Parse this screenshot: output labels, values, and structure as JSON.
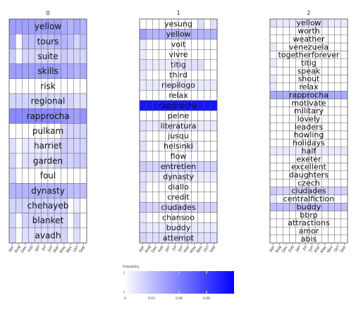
{
  "chart_data": {
    "type": "heatmap",
    "months": [
      "Apr",
      "Aug",
      "Dec",
      "Feb",
      "Jan",
      "Jul",
      "Jun",
      "Mar",
      "May",
      "Nov",
      "Oct",
      "Sep"
    ],
    "colorbar": {
      "label": "Probability",
      "ticks": [
        "0",
        "0.03",
        "0.06",
        "0.09"
      ],
      "range": [
        0,
        0.12
      ],
      "low_color": "#ffffff",
      "high_color": "#0000ff"
    },
    "panels": [
      {
        "title": "0",
        "words": [
          "yellow",
          "tours",
          "suite",
          "skills",
          "risk",
          "regional",
          "rapprocha",
          "pulkam",
          "harriet",
          "garden",
          "foul",
          "dynasty",
          "chehayeb",
          "blanket",
          "avadh"
        ],
        "values": [
          [
            0.045,
            0.045,
            0.045,
            0.045,
            0.045,
            0.045,
            0.045,
            0.045,
            0.04,
            0.035,
            0.04,
            0.035
          ],
          [
            0.04,
            0.0,
            0.03,
            0.03,
            0.03,
            0.03,
            0.03,
            0.035,
            0.035,
            0.03,
            0.02,
            0.03
          ],
          [
            0.025,
            0.0,
            0.02,
            0.02,
            0.02,
            0.02,
            0.02,
            0.02,
            0.025,
            0.02,
            0.02,
            0.02
          ],
          [
            0.045,
            0.045,
            0.045,
            0.045,
            0.045,
            0.045,
            0.045,
            0.045,
            0.04,
            0.04,
            0.035,
            0.04
          ],
          [
            0.0,
            0.0,
            0.0,
            0.0,
            0.0,
            0.0,
            0.0,
            0.0,
            0.0,
            0.0,
            0.0,
            0.0
          ],
          [
            0.02,
            0.02,
            0.02,
            0.02,
            0.02,
            0.02,
            0.02,
            0.02,
            0.02,
            0.02,
            0.015,
            0.015
          ],
          [
            0.055,
            0.055,
            0.055,
            0.055,
            0.055,
            0.055,
            0.055,
            0.055,
            0.05,
            0.045,
            0.045,
            0.05
          ],
          [
            0.0,
            0.0,
            0.0,
            0.0,
            0.0,
            0.0,
            0.0,
            0.0,
            0.02,
            0.02,
            0.02,
            0.02
          ],
          [
            0.015,
            0.0,
            0.01,
            0.01,
            0.01,
            0.01,
            0.01,
            0.015,
            0.025,
            0.02,
            0.02,
            0.02
          ],
          [
            0.02,
            0.0,
            0.015,
            0.015,
            0.015,
            0.015,
            0.015,
            0.02,
            0.025,
            0.02,
            0.025,
            0.025
          ],
          [
            0.02,
            0.0,
            0.0,
            0.0,
            0.0,
            0.0,
            0.0,
            0.0,
            0.0,
            0.0,
            0.0,
            0.0
          ],
          [
            0.035,
            0.035,
            0.035,
            0.035,
            0.035,
            0.035,
            0.035,
            0.035,
            0.035,
            0.03,
            0.03,
            0.03
          ],
          [
            0.02,
            0.02,
            0.02,
            0.02,
            0.02,
            0.02,
            0.02,
            0.02,
            0.02,
            0.0,
            0.01,
            0.0
          ],
          [
            0.02,
            0.0,
            0.02,
            0.02,
            0.02,
            0.02,
            0.02,
            0.02,
            0.02,
            0.0,
            0.02,
            0.0
          ],
          [
            0.02,
            0.0,
            0.015,
            0.015,
            0.015,
            0.015,
            0.015,
            0.015,
            0.02,
            0.0,
            0.015,
            0.0
          ]
        ]
      },
      {
        "title": "1",
        "words": [
          "yesung",
          "yellow",
          "voit",
          "vivre",
          "titig",
          "third",
          "riepilogo",
          "relax",
          "rapprocha",
          "peine",
          "literatura",
          "jusqu",
          "helsinki",
          "flow",
          "entretien",
          "dynasty",
          "diallo",
          "credit",
          "ciudades",
          "chansoo",
          "buddy",
          "attempt"
        ],
        "values": [
          [
            0.0,
            0.0,
            0.0,
            0.0,
            0.0,
            0.0,
            0.0,
            0.0,
            0.0,
            0.015,
            0.0,
            0.015
          ],
          [
            0.045,
            0.035,
            0.035,
            0.035,
            0.035,
            0.035,
            0.035,
            0.035,
            0.035,
            0.035,
            0.035,
            0.035
          ],
          [
            0.01,
            0.0,
            0.0,
            0.0,
            0.0,
            0.0,
            0.0,
            0.0,
            0.0,
            0.0,
            0.0,
            0.0
          ],
          [
            0.01,
            0.0,
            0.0,
            0.0,
            0.0,
            0.0,
            0.0,
            0.0,
            0.0,
            0.0,
            0.0,
            0.0
          ],
          [
            0.015,
            0.01,
            0.01,
            0.01,
            0.01,
            0.01,
            0.01,
            0.015,
            0.015,
            0.015,
            0.0,
            0.0
          ],
          [
            0.01,
            0.0,
            0.0,
            0.0,
            0.0,
            0.0,
            0.0,
            0.0,
            0.0,
            0.0,
            0.0,
            0.0
          ],
          [
            0.01,
            0.01,
            0.01,
            0.01,
            0.01,
            0.01,
            0.01,
            0.01,
            0.01,
            0.01,
            0.01,
            0.01
          ],
          [
            0.0,
            0.0,
            0.0,
            0.0,
            0.0,
            0.0,
            0.0,
            0.0,
            0.0,
            0.0,
            0.0,
            0.0
          ],
          [
            0.11,
            0.11,
            0.11,
            0.11,
            0.11,
            0.11,
            0.11,
            0.11,
            0.11,
            0.11,
            0.11,
            0.11
          ],
          [
            0.0,
            0.0,
            0.0,
            0.0,
            0.0,
            0.0,
            0.0,
            0.0,
            0.0,
            0.0,
            0.0,
            0.0
          ],
          [
            0.015,
            0.01,
            0.01,
            0.01,
            0.01,
            0.01,
            0.01,
            0.01,
            0.01,
            0.01,
            0.01,
            0.01
          ],
          [
            0.01,
            0.0,
            0.0,
            0.0,
            0.0,
            0.0,
            0.0,
            0.0,
            0.0,
            0.0,
            0.0,
            0.0
          ],
          [
            0.015,
            0.0,
            0.0,
            0.0,
            0.0,
            0.0,
            0.0,
            0.01,
            0.01,
            0.0,
            0.0,
            0.0
          ],
          [
            0.01,
            0.0,
            0.0,
            0.0,
            0.0,
            0.0,
            0.0,
            0.0,
            0.0,
            0.0,
            0.0,
            0.0
          ],
          [
            0.025,
            0.02,
            0.02,
            0.02,
            0.02,
            0.02,
            0.02,
            0.02,
            0.02,
            0.02,
            0.02,
            0.02
          ],
          [
            0.015,
            0.01,
            0.01,
            0.01,
            0.01,
            0.01,
            0.01,
            0.01,
            0.01,
            0.01,
            0.01,
            0.01
          ],
          [
            0.015,
            0.0,
            0.0,
            0.0,
            0.0,
            0.0,
            0.0,
            0.0,
            0.0,
            0.0,
            0.0,
            0.0
          ],
          [
            0.01,
            0.0,
            0.0,
            0.0,
            0.0,
            0.0,
            0.0,
            0.0,
            0.0,
            0.0,
            0.0,
            0.0
          ],
          [
            0.025,
            0.02,
            0.02,
            0.02,
            0.02,
            0.02,
            0.02,
            0.02,
            0.02,
            0.02,
            0.02,
            0.02
          ],
          [
            0.01,
            0.0,
            0.0,
            0.0,
            0.0,
            0.0,
            0.0,
            0.0,
            0.0,
            0.0,
            0.0,
            0.0
          ],
          [
            0.015,
            0.01,
            0.01,
            0.01,
            0.01,
            0.01,
            0.01,
            0.01,
            0.01,
            0.01,
            0.01,
            0.01
          ],
          [
            0.02,
            0.015,
            0.015,
            0.015,
            0.015,
            0.015,
            0.015,
            0.015,
            0.015,
            0.015,
            0.015,
            0.015
          ]
        ]
      },
      {
        "title": "2",
        "words": [
          "yellow",
          "worth",
          "weather",
          "venezuela",
          "togetherforever",
          "titig",
          "speak",
          "shout",
          "relax",
          "rapprocha",
          "motivate",
          "military",
          "lovely",
          "leaders",
          "howling",
          "holidays",
          "half",
          "exeter",
          "excellent",
          "daughters",
          "czech",
          "ciudades",
          "centralfiction",
          "buddy",
          "bbrp",
          "attractions",
          "amor",
          "abis"
        ],
        "values": [
          [
            0.015,
            0.01,
            0.01,
            0.01,
            0.01,
            0.01,
            0.01,
            0.015,
            0.015,
            0.01,
            0.01,
            0.01
          ],
          [
            0.0,
            0.0,
            0.0,
            0.0,
            0.0,
            0.0,
            0.0,
            0.0,
            0.0,
            0.0,
            0.0,
            0.0
          ],
          [
            0.0,
            0.0,
            0.0,
            0.0,
            0.0,
            0.0,
            0.0,
            0.0,
            0.0,
            0.0,
            0.0,
            0.0
          ],
          [
            0.01,
            0.0,
            0.0,
            0.0,
            0.0,
            0.0,
            0.0,
            0.0,
            0.0,
            0.0,
            0.0,
            0.0
          ],
          [
            0.0,
            0.0,
            0.0,
            0.0,
            0.0,
            0.0,
            0.0,
            0.0,
            0.0,
            0.0,
            0.0,
            0.0
          ],
          [
            0.01,
            0.0,
            0.0,
            0.0,
            0.0,
            0.0,
            0.0,
            0.0,
            0.0,
            0.0,
            0.0,
            0.0
          ],
          [
            0.0,
            0.0,
            0.0,
            0.0,
            0.0,
            0.0,
            0.0,
            0.0,
            0.0,
            0.0,
            0.0,
            0.0
          ],
          [
            0.01,
            0.0,
            0.0,
            0.0,
            0.0,
            0.0,
            0.0,
            0.0,
            0.0,
            0.0,
            0.0,
            0.0
          ],
          [
            0.01,
            0.0,
            0.0,
            0.0,
            0.0,
            0.0,
            0.0,
            0.0,
            0.0,
            0.0,
            0.0,
            0.0
          ],
          [
            0.04,
            0.04,
            0.04,
            0.04,
            0.04,
            0.04,
            0.04,
            0.04,
            0.04,
            0.04,
            0.04,
            0.04
          ],
          [
            0.0,
            0.0,
            0.0,
            0.0,
            0.0,
            0.0,
            0.0,
            0.0,
            0.0,
            0.0,
            0.0,
            0.0
          ],
          [
            0.0,
            0.0,
            0.0,
            0.0,
            0.0,
            0.0,
            0.0,
            0.0,
            0.0,
            0.0,
            0.0,
            0.0
          ],
          [
            0.0,
            0.0,
            0.0,
            0.0,
            0.0,
            0.0,
            0.0,
            0.0,
            0.0,
            0.0,
            0.0,
            0.0
          ],
          [
            0.0,
            0.0,
            0.0,
            0.0,
            0.0,
            0.0,
            0.0,
            0.0,
            0.0,
            0.0,
            0.0,
            0.0
          ],
          [
            0.0,
            0.0,
            0.0,
            0.0,
            0.0,
            0.0,
            0.0,
            0.0,
            0.0,
            0.0,
            0.0,
            0.0
          ],
          [
            0.0,
            0.0,
            0.0,
            0.0,
            0.0,
            0.0,
            0.0,
            0.0,
            0.0,
            0.0,
            0.0,
            0.0
          ],
          [
            0.01,
            0.01,
            0.01,
            0.01,
            0.01,
            0.01,
            0.01,
            0.01,
            0.01,
            0.01,
            0.01,
            0.01
          ],
          [
            0.0,
            0.0,
            0.0,
            0.0,
            0.0,
            0.0,
            0.0,
            0.0,
            0.0,
            0.0,
            0.0,
            0.0
          ],
          [
            0.0,
            0.0,
            0.0,
            0.0,
            0.0,
            0.0,
            0.0,
            0.0,
            0.0,
            0.0,
            0.0,
            0.0
          ],
          [
            0.0,
            0.0,
            0.0,
            0.0,
            0.0,
            0.0,
            0.0,
            0.0,
            0.0,
            0.0,
            0.0,
            0.0
          ],
          [
            0.0,
            0.0,
            0.0,
            0.0,
            0.0,
            0.0,
            0.0,
            0.0,
            0.0,
            0.0,
            0.0,
            0.0
          ],
          [
            0.025,
            0.02,
            0.02,
            0.02,
            0.02,
            0.02,
            0.02,
            0.02,
            0.02,
            0.02,
            0.02,
            0.02
          ],
          [
            0.01,
            0.0,
            0.0,
            0.0,
            0.0,
            0.0,
            0.0,
            0.0,
            0.0,
            0.0,
            0.0,
            0.0
          ],
          [
            0.03,
            0.03,
            0.03,
            0.03,
            0.03,
            0.03,
            0.03,
            0.03,
            0.03,
            0.03,
            0.03,
            0.03
          ],
          [
            0.0,
            0.0,
            0.0,
            0.0,
            0.0,
            0.0,
            0.0,
            0.0,
            0.0,
            0.0,
            0.0,
            0.0
          ],
          [
            0.0,
            0.0,
            0.0,
            0.0,
            0.0,
            0.0,
            0.0,
            0.0,
            0.0,
            0.0,
            0.0,
            0.0
          ],
          [
            0.0,
            0.0,
            0.0,
            0.0,
            0.0,
            0.0,
            0.0,
            0.0,
            0.0,
            0.0,
            0.0,
            0.0
          ],
          [
            0.0,
            0.0,
            0.0,
            0.0,
            0.0,
            0.0,
            0.0,
            0.0,
            0.0,
            0.0,
            0.0,
            0.0
          ]
        ]
      }
    ]
  }
}
